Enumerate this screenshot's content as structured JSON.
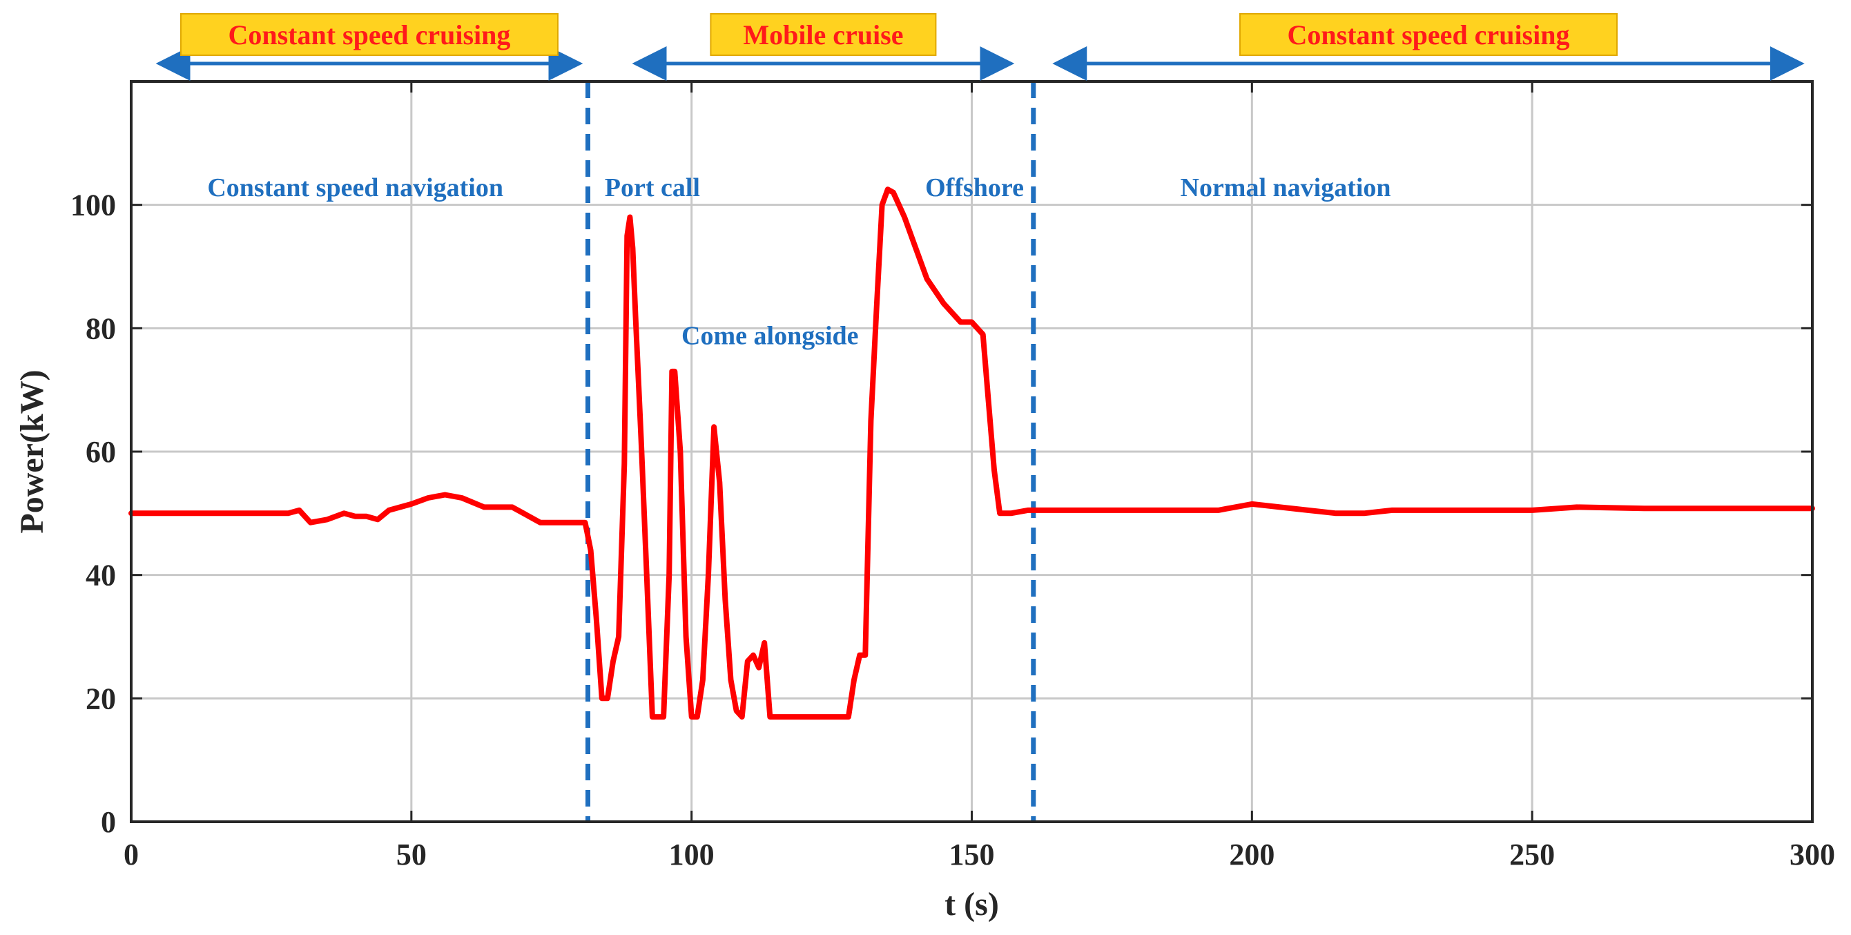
{
  "colors": {
    "line": "#ff0000",
    "divider": "#1f6fbf",
    "arrow": "#1f6fbf",
    "banner_fill": "#ffd21f",
    "banner_text": "#ff1a1a",
    "annotation": "#1f6fbf",
    "grid": "#c8c8c8",
    "axis": "#262626"
  },
  "chart_data": {
    "type": "line",
    "title": "",
    "xlabel": "t (s)",
    "ylabel": "Power(kW)",
    "xlim": [
      0,
      300
    ],
    "ylim": [
      0,
      120
    ],
    "xticks": [
      0,
      50,
      100,
      150,
      200,
      250,
      300
    ],
    "yticks": [
      0,
      20,
      40,
      60,
      80,
      100
    ],
    "grid": true,
    "series": [
      {
        "name": "Power",
        "x": [
          0,
          28,
          30,
          32,
          35,
          38,
          40,
          42,
          44,
          46,
          50,
          53,
          56,
          59,
          63,
          68,
          73,
          77,
          81,
          82,
          83,
          84,
          85,
          86,
          87,
          88,
          88.5,
          89,
          89.5,
          90,
          91,
          92,
          93,
          94,
          95,
          96,
          96.5,
          97,
          98,
          99,
          100,
          101,
          102,
          103,
          104,
          105,
          106,
          107,
          108,
          109,
          110,
          111,
          112,
          113,
          114,
          117,
          120,
          124,
          128,
          129,
          130,
          131,
          132,
          133,
          134,
          135,
          136,
          138,
          140,
          142,
          145,
          148,
          150,
          151,
          152,
          153,
          154,
          155,
          157,
          160,
          165,
          170,
          180,
          188,
          194,
          200,
          205,
          210,
          215,
          220,
          225,
          230,
          240,
          250,
          258,
          270,
          300
        ],
        "values": [
          50,
          50,
          50.5,
          48.5,
          49,
          50,
          49.5,
          49.5,
          49,
          50.5,
          51.5,
          52.5,
          53,
          52.5,
          51,
          51,
          48.5,
          48.5,
          48.5,
          44,
          33,
          20,
          20,
          26,
          30,
          58,
          95,
          98,
          93,
          82,
          62,
          40,
          17,
          17,
          17,
          40,
          73,
          73,
          60,
          30,
          17,
          17,
          23,
          40,
          64,
          55,
          36,
          23,
          18,
          17,
          26,
          27,
          25,
          29,
          17,
          17,
          17,
          17,
          17,
          23,
          27,
          27,
          65,
          83,
          100,
          102.5,
          102,
          98,
          93,
          88,
          84,
          81,
          81,
          80,
          79,
          68,
          57,
          50,
          50,
          50.5,
          50.5,
          50.5,
          50.5,
          50.5,
          50.5,
          51.5,
          51,
          50.5,
          50,
          50,
          50.5,
          50.5,
          50.5,
          50.5,
          51,
          50.8,
          50.8
        ]
      }
    ],
    "dividers": [
      81.5,
      161
    ],
    "phase_labels": [
      {
        "text": "Constant speed navigation",
        "x": 40,
        "y": 103
      },
      {
        "text": "Port call",
        "x": 93,
        "y": 103
      },
      {
        "text": "Come alongside",
        "x": 114,
        "y": 79
      },
      {
        "text": "Offshore",
        "x": 150.5,
        "y": 103
      },
      {
        "text": "Normal navigation",
        "x": 206,
        "y": 103
      }
    ],
    "banners": [
      {
        "text": "Constant speed cruising",
        "x_start": 5,
        "x_end": 80
      },
      {
        "text": "Mobile cruise",
        "x_start": 90,
        "x_end": 157
      },
      {
        "text": "Constant speed cruising",
        "x_start": 165,
        "x_end": 298
      }
    ]
  }
}
